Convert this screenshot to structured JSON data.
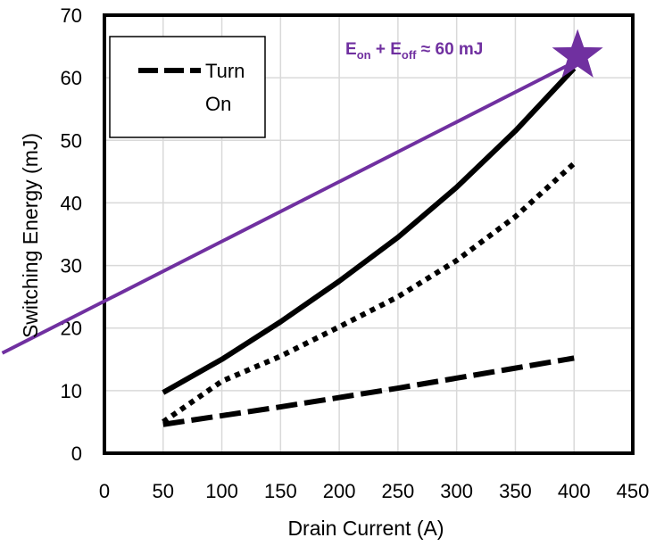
{
  "chart_data": {
    "type": "line",
    "title": "",
    "xlabel": "Drain Current (A)",
    "ylabel": "Switching Energy (mJ)",
    "xlim": [
      0,
      450
    ],
    "ylim": [
      0,
      70
    ],
    "xticks": [
      0,
      50,
      100,
      150,
      200,
      250,
      300,
      350,
      400,
      450
    ],
    "yticks": [
      0,
      10,
      20,
      30,
      40,
      50,
      60,
      70
    ],
    "grid": true,
    "legend_position": "top-left",
    "legend_entries": [
      "Turn",
      "On"
    ],
    "series": [
      {
        "key": "total",
        "style": "solid",
        "color": "#000000",
        "x": [
          50,
          100,
          150,
          200,
          250,
          300,
          350,
          400
        ],
        "y": [
          9.7,
          15,
          21,
          27.5,
          34.5,
          42.5,
          51.5,
          61.5
        ]
      },
      {
        "key": "dotted",
        "style": "dotted",
        "color": "#000000",
        "x": [
          50,
          100,
          150,
          200,
          250,
          300,
          350,
          400
        ],
        "y": [
          5,
          11.5,
          15.5,
          20.2,
          25,
          30.8,
          37.8,
          46.3
        ]
      },
      {
        "name": "Turn On",
        "key": "turn_on",
        "style": "dashed",
        "color": "#000000",
        "x": [
          50,
          100,
          150,
          200,
          250,
          300,
          350,
          400
        ],
        "y": [
          4.6,
          6.0,
          7.4,
          8.9,
          10.4,
          12.0,
          13.6,
          15.2
        ]
      }
    ],
    "annotation": {
      "text_main": "E",
      "sub1": "on",
      "plus": " + E",
      "sub2": "off",
      "rest": " ≈ 60 mJ",
      "color": "#7030a0",
      "trend_line": {
        "x": [
          -87,
          395
        ],
        "y": [
          16,
          62
        ]
      },
      "marker": {
        "x": 403,
        "y": 63.5,
        "shape": "star"
      }
    }
  }
}
